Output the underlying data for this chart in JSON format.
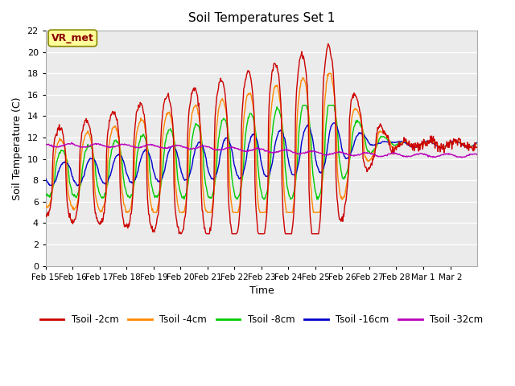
{
  "title": "Soil Temperatures Set 1",
  "xlabel": "Time",
  "ylabel": "Soil Temperature (C)",
  "ylim": [
    0,
    22
  ],
  "yticks": [
    0,
    2,
    4,
    6,
    8,
    10,
    12,
    14,
    16,
    18,
    20,
    22
  ],
  "xtick_labels": [
    "Feb 15",
    "Feb 16",
    "Feb 17",
    "Feb 18",
    "Feb 19",
    "Feb 20",
    "Feb 21",
    "Feb 22",
    "Feb 23",
    "Feb 24",
    "Feb 25",
    "Feb 26",
    "Feb 27",
    "Feb 28",
    "Mar 1",
    "Mar 2"
  ],
  "n_xticks": 16,
  "annotation_text": "VR_met",
  "colors": {
    "Tsoil -2cm": "#cc0000",
    "Tsoil -4cm": "#ff8800",
    "Tsoil -8cm": "#00cc00",
    "Tsoil -16cm": "#0000cc",
    "Tsoil -32cm": "#bb00bb"
  },
  "legend_labels": [
    "Tsoil -2cm",
    "Tsoil -4cm",
    "Tsoil -8cm",
    "Tsoil -16cm",
    "Tsoil -32cm"
  ],
  "fig_facecolor": "#ffffff",
  "ax_facecolor": "#ebebeb",
  "grid_color": "#ffffff",
  "linewidth": 1.0
}
